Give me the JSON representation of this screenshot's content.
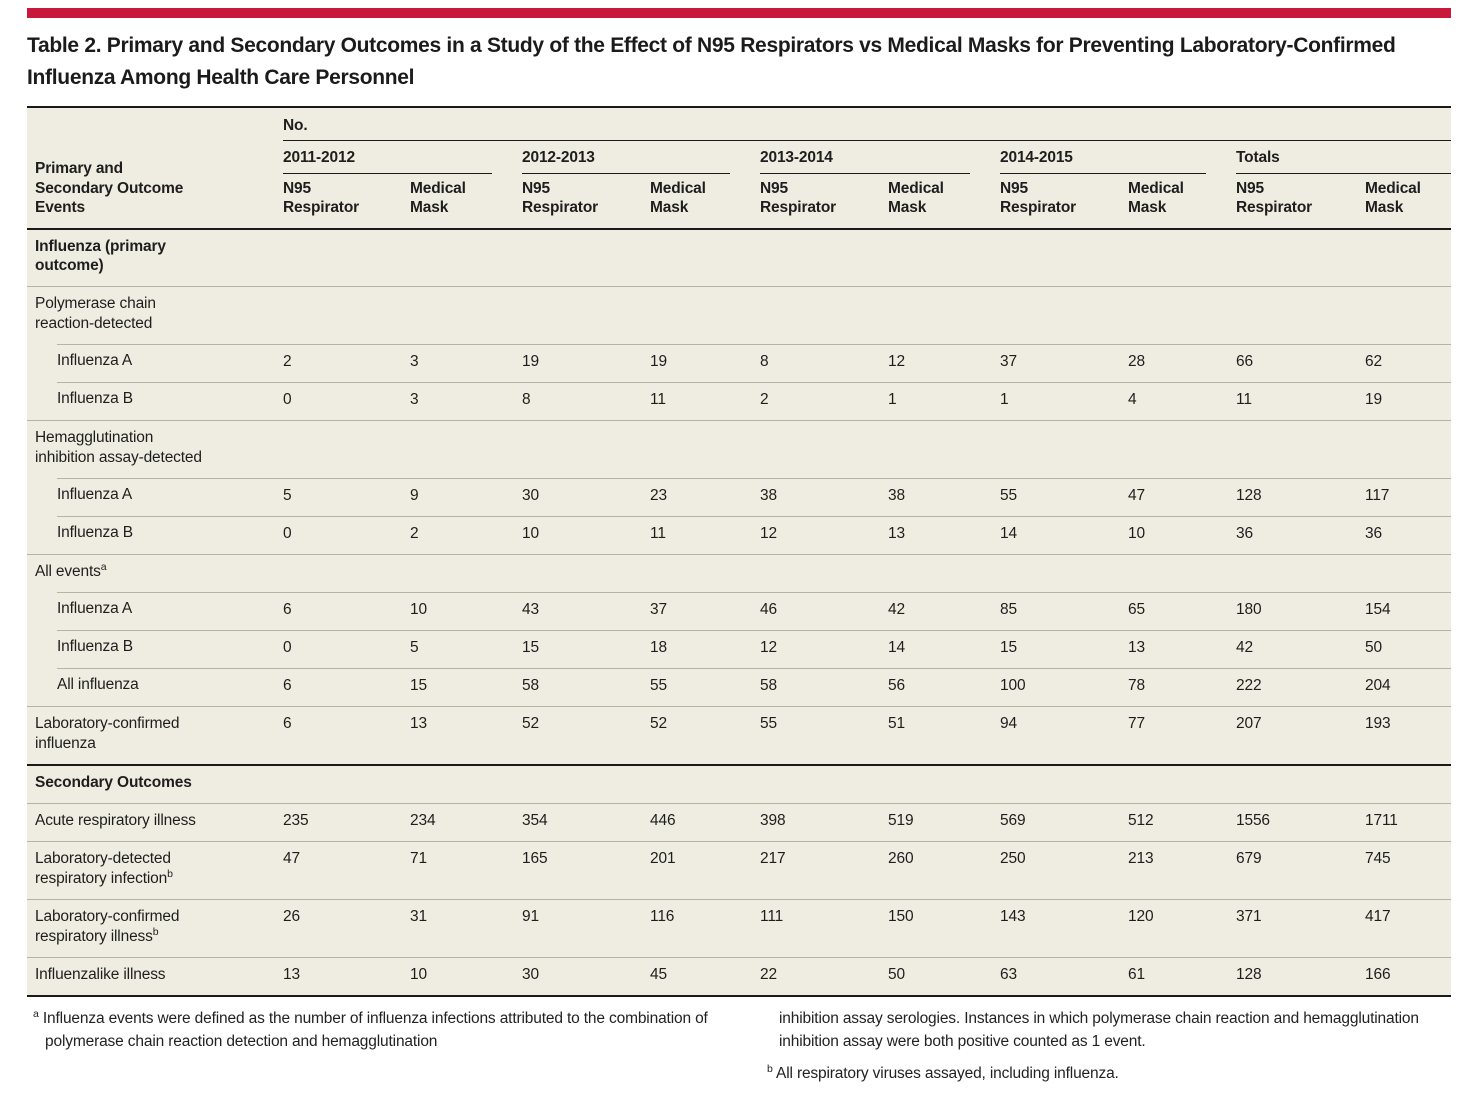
{
  "page": {
    "accent_red": "#C8193B",
    "panel_bg": "#EFEDE1",
    "rule_black": "#1A1A1A",
    "row_line": "#B7B4A5"
  },
  "title": "Table 2. Primary and Secondary Outcomes in a Study of the Effect of N95 Respirators vs Medical Masks for Preventing Laboratory-Confirmed Influenza Among Health Care Personnel",
  "header": {
    "stub": "Primary and Secondary Outcome Events",
    "unit": "No.",
    "groups": [
      "2011-2012",
      "2012-2013",
      "2013-2014",
      "2014-2015",
      "Totals"
    ],
    "sub_n95": "N95 Respirator",
    "sub_mask": "Medical Mask"
  },
  "rows": [
    {
      "type": "section",
      "bold": true,
      "indent": false,
      "rule": "none",
      "label": "Influenza (primary outcome)",
      "sup": null,
      "values": null
    },
    {
      "type": "subhead",
      "bold": false,
      "indent": false,
      "rule": "full",
      "label": "Polymerase chain reaction-detected",
      "sup": null,
      "values": null
    },
    {
      "type": "data",
      "bold": false,
      "indent": true,
      "rule": "indent",
      "label": "Influenza A",
      "sup": null,
      "values": [
        "2",
        "3",
        "19",
        "19",
        "8",
        "12",
        "37",
        "28",
        "66",
        "62"
      ]
    },
    {
      "type": "data",
      "bold": false,
      "indent": true,
      "rule": "indent",
      "label": "Influenza B",
      "sup": null,
      "values": [
        "0",
        "3",
        "8",
        "11",
        "2",
        "1",
        "1",
        "4",
        "11",
        "19"
      ]
    },
    {
      "type": "subhead",
      "bold": false,
      "indent": false,
      "rule": "full",
      "label": "Hemagglutination inhibition assay-detected",
      "sup": null,
      "values": null
    },
    {
      "type": "data",
      "bold": false,
      "indent": true,
      "rule": "indent",
      "label": "Influenza A",
      "sup": null,
      "values": [
        "5",
        "9",
        "30",
        "23",
        "38",
        "38",
        "55",
        "47",
        "128",
        "117"
      ]
    },
    {
      "type": "data",
      "bold": false,
      "indent": true,
      "rule": "indent",
      "label": "Influenza B",
      "sup": null,
      "values": [
        "0",
        "2",
        "10",
        "11",
        "12",
        "13",
        "14",
        "10",
        "36",
        "36"
      ]
    },
    {
      "type": "subhead",
      "bold": false,
      "indent": false,
      "rule": "full",
      "label": "All events",
      "sup": "a",
      "values": null
    },
    {
      "type": "data",
      "bold": false,
      "indent": true,
      "rule": "indent",
      "label": "Influenza A",
      "sup": null,
      "values": [
        "6",
        "10",
        "43",
        "37",
        "46",
        "42",
        "85",
        "65",
        "180",
        "154"
      ]
    },
    {
      "type": "data",
      "bold": false,
      "indent": true,
      "rule": "indent",
      "label": "Influenza B",
      "sup": null,
      "values": [
        "0",
        "5",
        "15",
        "18",
        "12",
        "14",
        "15",
        "13",
        "42",
        "50"
      ]
    },
    {
      "type": "data",
      "bold": false,
      "indent": true,
      "rule": "indent",
      "label": "All influenza",
      "sup": null,
      "values": [
        "6",
        "15",
        "58",
        "55",
        "58",
        "56",
        "100",
        "78",
        "222",
        "204"
      ]
    },
    {
      "type": "data",
      "bold": false,
      "indent": false,
      "rule": "full",
      "label": "Laboratory-confirmed influenza",
      "sup": null,
      "values": [
        "6",
        "13",
        "52",
        "52",
        "55",
        "51",
        "94",
        "77",
        "207",
        "193"
      ]
    },
    {
      "type": "section",
      "bold": true,
      "indent": false,
      "rule": "thick",
      "label": "Secondary Outcomes",
      "sup": null,
      "values": null
    },
    {
      "type": "data",
      "bold": false,
      "indent": false,
      "rule": "full",
      "label": "Acute respiratory illness",
      "sup": null,
      "values": [
        "235",
        "234",
        "354",
        "446",
        "398",
        "519",
        "569",
        "512",
        "1556",
        "1711"
      ]
    },
    {
      "type": "data",
      "bold": false,
      "indent": false,
      "rule": "full",
      "label": "Laboratory-detected respiratory infection",
      "sup": "b",
      "values": [
        "47",
        "71",
        "165",
        "201",
        "217",
        "260",
        "250",
        "213",
        "679",
        "745"
      ]
    },
    {
      "type": "data",
      "bold": false,
      "indent": false,
      "rule": "full",
      "label": "Laboratory-confirmed respiratory illness",
      "sup": "b",
      "values": [
        "26",
        "31",
        "91",
        "116",
        "111",
        "150",
        "143",
        "120",
        "371",
        "417"
      ]
    },
    {
      "type": "data",
      "bold": false,
      "indent": false,
      "rule": "full",
      "label": "Influenzalike illness",
      "sup": null,
      "values": [
        "13",
        "10",
        "30",
        "45",
        "22",
        "50",
        "63",
        "61",
        "128",
        "166"
      ]
    }
  ],
  "footnotes": {
    "a_marker": "a",
    "a_left": "Influenza events were defined as the number of influenza infections attributed to the combination of polymerase chain reaction detection and hemagglutination",
    "a_right": "inhibition assay serologies. Instances in which polymerase chain reaction and hemagglutination inhibition assay were both positive counted as 1 event.",
    "b_marker": "b",
    "b_text": "All respiratory viruses assayed, including influenza."
  }
}
